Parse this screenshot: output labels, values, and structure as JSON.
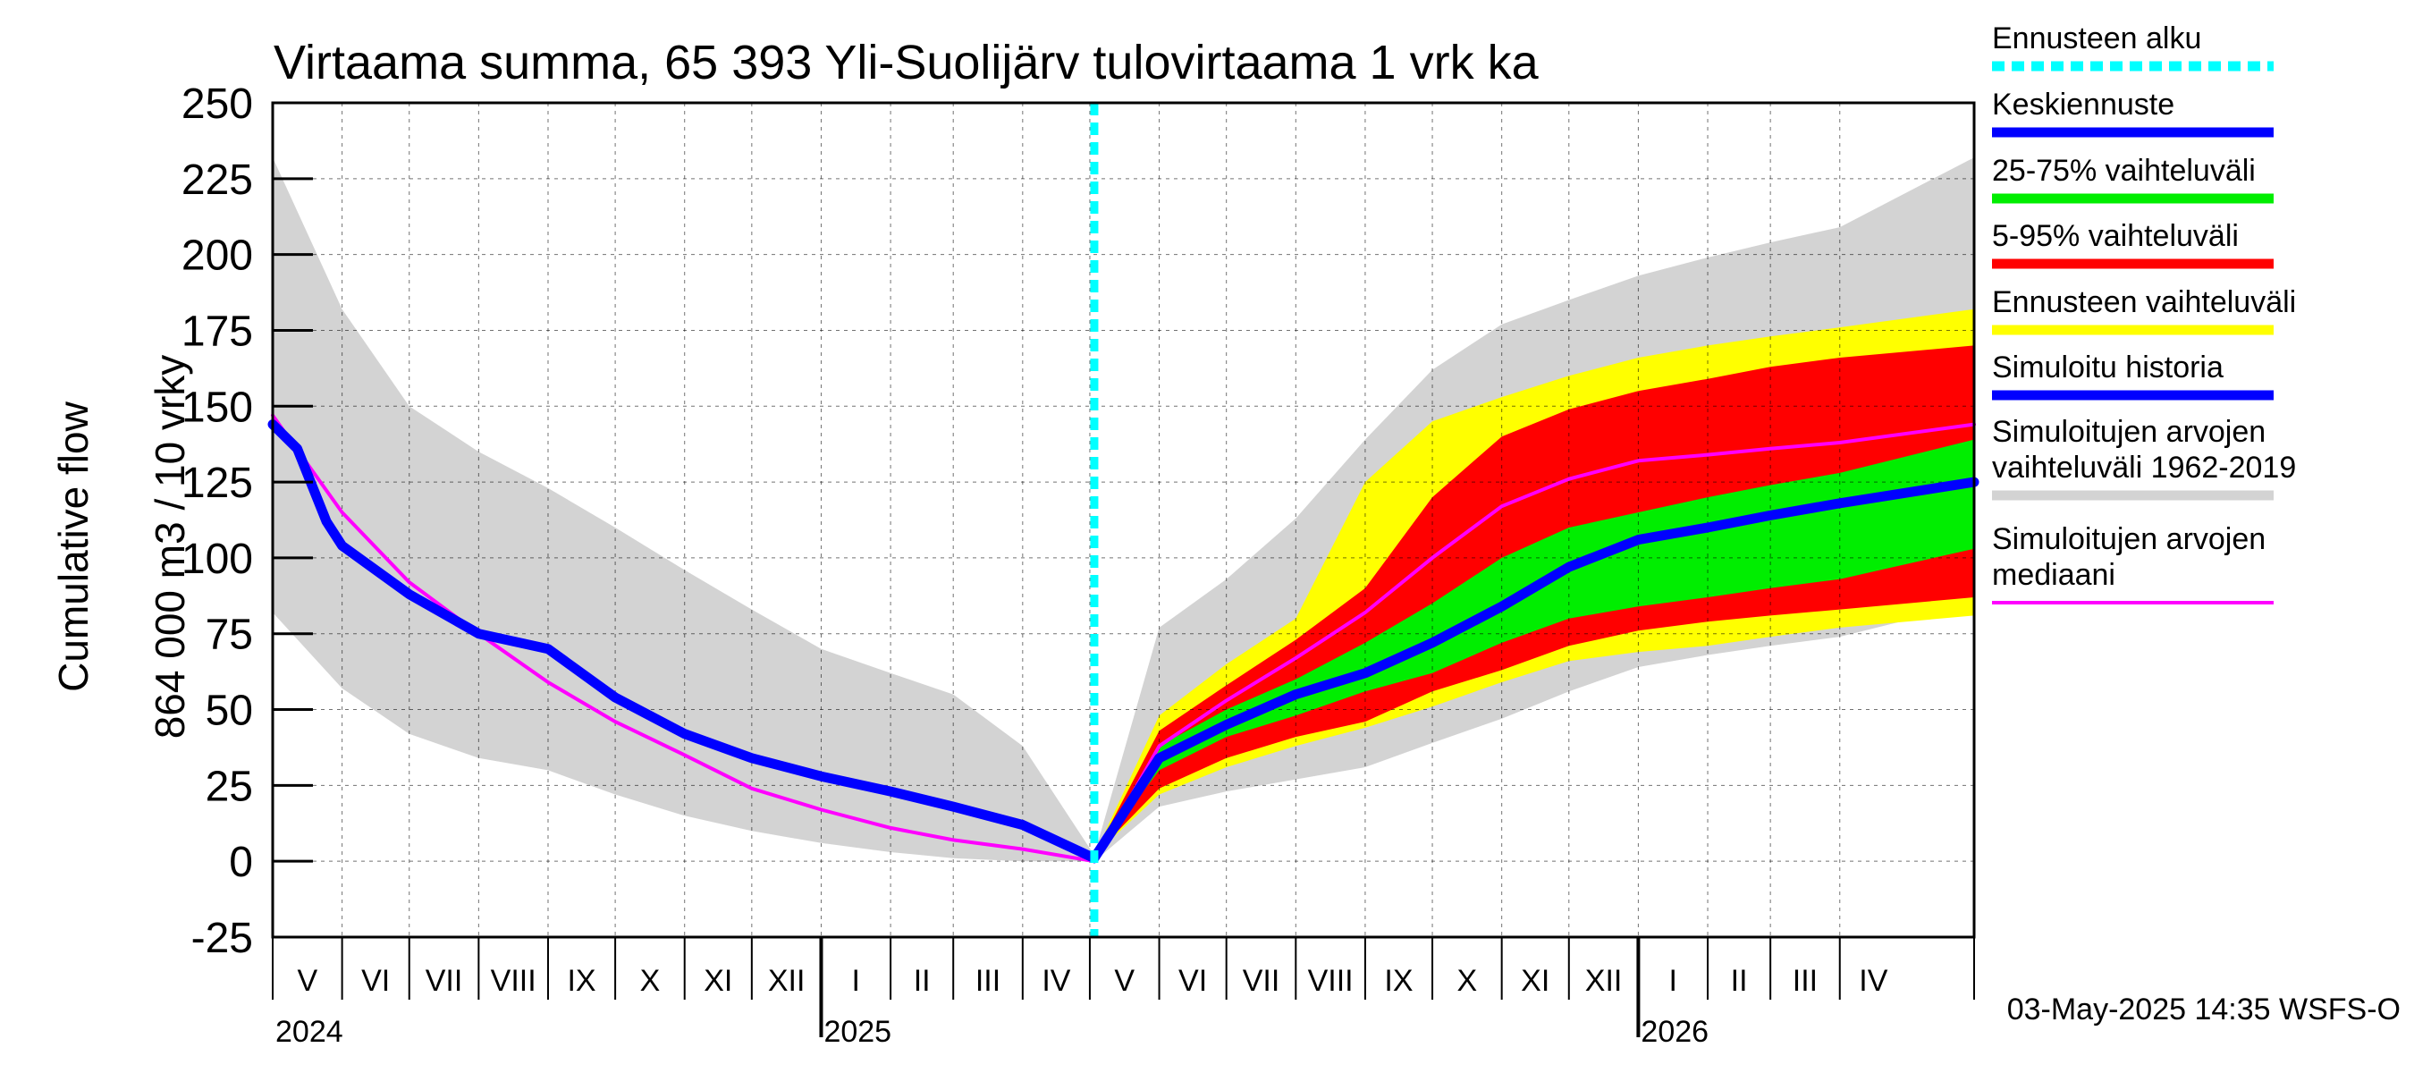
{
  "chart_data": {
    "type": "area",
    "title": "Virtaama summa, 65 393 Yli-Suolijärv tulovirtaama 1 vrk ka",
    "ylabel_lines": [
      "Cumulative flow",
      "864 000 m3 / 10 vrky"
    ],
    "ylim": [
      -25,
      250
    ],
    "yticks": [
      250,
      225,
      200,
      175,
      150,
      125,
      100,
      75,
      50,
      25,
      0,
      -25
    ],
    "months": [
      "V",
      "VI",
      "VII",
      "VIII",
      "IX",
      "X",
      "XI",
      "XII",
      "I",
      "II",
      "III",
      "IV",
      "V",
      "VI",
      "VII",
      "VIII",
      "IX",
      "X",
      "XI",
      "XII",
      "I",
      "II",
      "III",
      "IV"
    ],
    "years": [
      {
        "label": "2024",
        "month_index": 0
      },
      {
        "label": "2025",
        "month_index": 8
      },
      {
        "label": "2026",
        "month_index": 20
      }
    ],
    "x_start": "2024-05-01",
    "x_end": "2026-05-31",
    "forecast_start": "2025-05-03",
    "series": [
      {
        "name": "Simuloitujen arvojen vaihteluväli 1962-2019",
        "kind": "band",
        "color": "#d3d3d3",
        "x": [
          "2024-05-01",
          "2024-06-01",
          "2024-07-01",
          "2024-08-01",
          "2024-09-01",
          "2024-10-01",
          "2024-11-01",
          "2024-12-01",
          "2025-01-01",
          "2025-02-01",
          "2025-03-01",
          "2025-04-01",
          "2025-05-03",
          "2025-06-01",
          "2025-07-01",
          "2025-08-01",
          "2025-09-01",
          "2025-10-01",
          "2025-11-01",
          "2025-12-01",
          "2026-01-01",
          "2026-02-01",
          "2026-03-01",
          "2026-04-01",
          "2026-05-31"
        ],
        "upper": [
          232,
          182,
          150,
          135,
          123,
          110,
          96,
          83,
          70,
          62,
          55,
          38,
          2,
          77,
          93,
          113,
          139,
          162,
          177,
          185,
          193,
          199,
          204,
          209,
          232
        ],
        "lower": [
          82,
          57,
          42,
          34,
          30,
          22,
          15,
          10,
          6,
          3,
          1,
          0,
          0,
          18,
          23,
          27,
          31,
          39,
          47,
          56,
          64,
          68,
          71,
          74,
          85
        ]
      },
      {
        "name": "Ennusteen vaihteluväli",
        "kind": "band",
        "color": "#ffff00",
        "x": [
          "2025-05-03",
          "2025-06-01",
          "2025-07-01",
          "2025-08-01",
          "2025-09-01",
          "2025-10-01",
          "2025-11-01",
          "2025-12-01",
          "2026-01-01",
          "2026-02-01",
          "2026-03-01",
          "2026-04-01",
          "2026-05-31"
        ],
        "upper": [
          2,
          48,
          65,
          80,
          125,
          145,
          153,
          160,
          166,
          170,
          173,
          176,
          182
        ],
        "lower": [
          2,
          22,
          31,
          38,
          44,
          51,
          59,
          66,
          69,
          71,
          74,
          77,
          81
        ]
      },
      {
        "name": "5-95% vaihteluväli",
        "kind": "band",
        "color": "#ff0000",
        "x": [
          "2025-05-03",
          "2025-06-01",
          "2025-07-01",
          "2025-08-01",
          "2025-09-01",
          "2025-10-01",
          "2025-11-01",
          "2025-12-01",
          "2026-01-01",
          "2026-02-01",
          "2026-03-01",
          "2026-04-01",
          "2026-05-31"
        ],
        "upper": [
          2,
          43,
          58,
          73,
          90,
          120,
          140,
          149,
          155,
          159,
          163,
          166,
          170
        ],
        "lower": [
          2,
          24,
          34,
          41,
          46,
          56,
          63,
          71,
          76,
          79,
          81,
          83,
          87
        ]
      },
      {
        "name": "25-75% vaihteluväli",
        "kind": "band",
        "color": "#00ee00",
        "x": [
          "2025-05-03",
          "2025-06-01",
          "2025-07-01",
          "2025-08-01",
          "2025-09-01",
          "2025-10-01",
          "2025-11-01",
          "2025-12-01",
          "2026-01-01",
          "2026-02-01",
          "2026-03-01",
          "2026-04-01",
          "2026-05-31"
        ],
        "upper": [
          2,
          38,
          50,
          60,
          72,
          85,
          100,
          110,
          115,
          120,
          124,
          128,
          139
        ],
        "lower": [
          2,
          30,
          41,
          48,
          56,
          62,
          72,
          80,
          84,
          87,
          90,
          93,
          103
        ]
      },
      {
        "name": "Simuloitujen arvojen mediaani",
        "kind": "line",
        "color": "#ff00ff",
        "x": [
          "2024-05-01",
          "2024-06-01",
          "2024-07-01",
          "2024-08-01",
          "2024-09-01",
          "2024-10-01",
          "2024-11-01",
          "2024-12-01",
          "2025-01-01",
          "2025-02-01",
          "2025-03-01",
          "2025-04-01",
          "2025-05-03",
          "2025-06-01",
          "2025-07-01",
          "2025-08-01",
          "2025-09-01",
          "2025-10-01",
          "2025-11-01",
          "2025-12-01",
          "2026-01-01",
          "2026-02-01",
          "2026-03-01",
          "2026-04-01",
          "2026-05-31"
        ],
        "values": [
          147,
          115,
          92,
          75,
          59,
          46,
          35,
          24,
          17,
          11,
          7,
          4,
          0,
          38,
          53,
          67,
          82,
          100,
          117,
          126,
          132,
          134,
          136,
          138,
          144
        ]
      },
      {
        "name": "Simuloitu historia",
        "kind": "line",
        "color": "#0000ff",
        "x": [
          "2024-05-01",
          "2024-05-12",
          "2024-05-25",
          "2024-06-01",
          "2024-07-01",
          "2024-08-01",
          "2024-09-01",
          "2024-10-01",
          "2024-11-01",
          "2024-12-01",
          "2025-01-01",
          "2025-02-01",
          "2025-03-01",
          "2025-04-01",
          "2025-05-03"
        ],
        "values": [
          144,
          136,
          112,
          104,
          88,
          75,
          70,
          54,
          42,
          34,
          28,
          23,
          18,
          12,
          1
        ]
      },
      {
        "name": "Keskiennuste",
        "kind": "line",
        "color": "#0000ff",
        "x": [
          "2025-05-03",
          "2025-06-01",
          "2025-07-01",
          "2025-08-01",
          "2025-09-01",
          "2025-10-01",
          "2025-11-01",
          "2025-12-01",
          "2026-01-01",
          "2026-02-01",
          "2026-03-01",
          "2026-04-01",
          "2026-05-31"
        ],
        "values": [
          1,
          34,
          45,
          55,
          62,
          72,
          84,
          97,
          106,
          110,
          114,
          118,
          125
        ]
      }
    ],
    "legend": [
      {
        "label": "Ennusteen alku",
        "color": "#00ffff",
        "style": "dashed"
      },
      {
        "label": "Keskiennuste",
        "color": "#0000ff",
        "style": "line"
      },
      {
        "label": "25-75% vaihteluväli",
        "color": "#00ee00",
        "style": "line"
      },
      {
        "label": "5-95% vaihteluväli",
        "color": "#ff0000",
        "style": "line"
      },
      {
        "label": "Ennusteen vaihteluväli",
        "color": "#ffff00",
        "style": "line"
      },
      {
        "label": "Simuloitu historia",
        "color": "#0000ff",
        "style": "line"
      },
      {
        "label": "Simuloitujen arvojen vaihteluväli 1962-2019",
        "color": "#d3d3d3",
        "style": "line",
        "lines": [
          "Simuloitujen arvojen",
          "vaihteluväli 1962-2019"
        ]
      },
      {
        "label": "Simuloitujen arvojen mediaani",
        "color": "#ff00ff",
        "style": "thin",
        "lines": [
          "Simuloitujen arvojen",
          "mediaani"
        ]
      }
    ],
    "grid": true,
    "legend_position": "right",
    "footer": "03-May-2025 14:35 WSFS-O"
  }
}
